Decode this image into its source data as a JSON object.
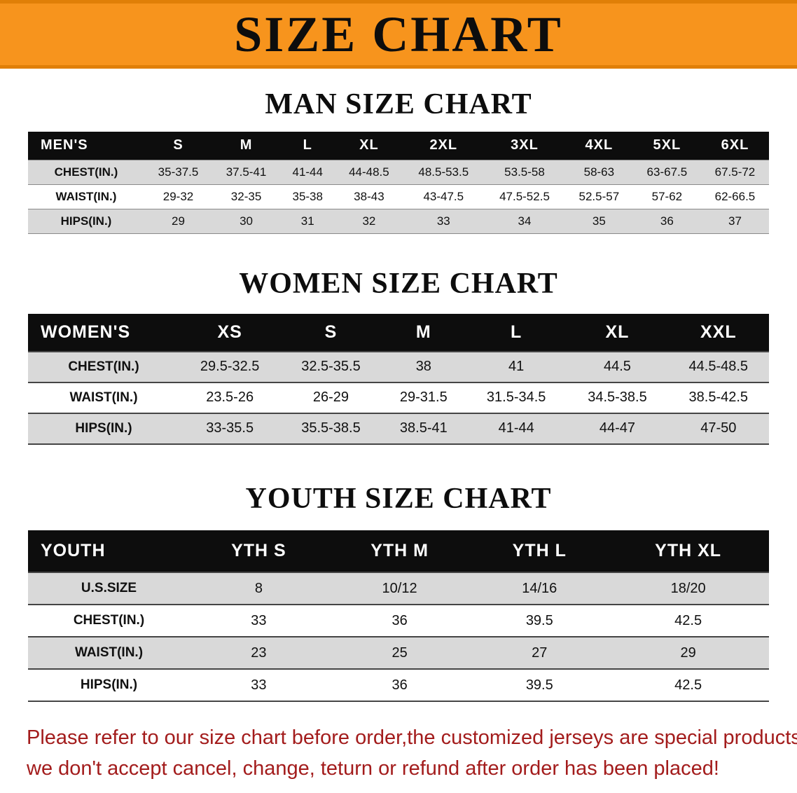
{
  "banner": {
    "title": "SIZE CHART"
  },
  "colors": {
    "banner_bg": "#f7941d",
    "table_header_bg": "#0d0d0d",
    "alt_row_bg": "#d9d9d9",
    "note_text": "#a31c1c"
  },
  "men": {
    "heading": "MAN SIZE CHART",
    "table": {
      "header": [
        "MEN'S",
        "S",
        "M",
        "L",
        "XL",
        "2XL",
        "3XL",
        "4XL",
        "5XL",
        "6XL"
      ],
      "rows": [
        {
          "label": "CHEST(IN.)",
          "values": [
            "35-37.5",
            "37.5-41",
            "41-44",
            "44-48.5",
            "48.5-53.5",
            "53.5-58",
            "58-63",
            "63-67.5",
            "67.5-72"
          ]
        },
        {
          "label": "WAIST(IN.)",
          "values": [
            "29-32",
            "32-35",
            "35-38",
            "38-43",
            "43-47.5",
            "47.5-52.5",
            "52.5-57",
            "57-62",
            "62-66.5"
          ]
        },
        {
          "label": "HIPS(IN.)",
          "values": [
            "29",
            "30",
            "31",
            "32",
            "33",
            "34",
            "35",
            "36",
            "37"
          ]
        }
      ]
    }
  },
  "women": {
    "heading": "WOMEN SIZE CHART",
    "table": {
      "header": [
        "WOMEN'S",
        "XS",
        "S",
        "M",
        "L",
        "XL",
        "XXL"
      ],
      "rows": [
        {
          "label": "CHEST(IN.)",
          "values": [
            "29.5-32.5",
            "32.5-35.5",
            "38",
            "41",
            "44.5",
            "44.5-48.5"
          ]
        },
        {
          "label": "WAIST(IN.)",
          "values": [
            "23.5-26",
            "26-29",
            "29-31.5",
            "31.5-34.5",
            "34.5-38.5",
            "38.5-42.5"
          ]
        },
        {
          "label": "HIPS(IN.)",
          "values": [
            "33-35.5",
            "35.5-38.5",
            "38.5-41",
            "41-44",
            "44-47",
            "47-50"
          ]
        }
      ]
    }
  },
  "youth": {
    "heading": "YOUTH SIZE CHART",
    "table": {
      "header": [
        "YOUTH",
        "YTH S",
        "YTH M",
        "YTH L",
        "YTH XL"
      ],
      "rows": [
        {
          "label": "U.S.SIZE",
          "values": [
            "8",
            "10/12",
            "14/16",
            "18/20"
          ]
        },
        {
          "label": "CHEST(IN.)",
          "values": [
            "33",
            "36",
            "39.5",
            "42.5"
          ]
        },
        {
          "label": "WAIST(IN.)",
          "values": [
            "23",
            "25",
            "27",
            "29"
          ]
        },
        {
          "label": "HIPS(IN.)",
          "values": [
            "33",
            "36",
            "39.5",
            "42.5"
          ]
        }
      ]
    }
  },
  "note": {
    "line1": "Please refer to our size chart before order,the customized jerseys are special products,",
    "line2": "we don't accept cancel, change, teturn or refund after order has been placed!"
  }
}
